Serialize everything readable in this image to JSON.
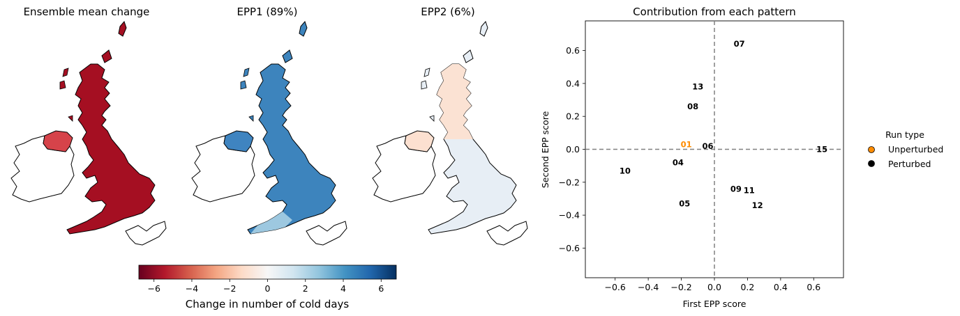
{
  "maps": [
    {
      "title": "Ensemble mean change",
      "fill": "#a50f22",
      "fill_light": "#c8303a",
      "ni_fill": "#d6434a",
      "ireland_fill": "#ffffff"
    },
    {
      "title": "EPP1 (89%)",
      "fill": "#3d84bd",
      "fill_light": "#9dc8e0",
      "ni_fill": "#3f84c0",
      "ireland_fill": "#ffffff"
    },
    {
      "title": "EPP2 (6%)",
      "fill": "#e7eef5",
      "fill_light": "#fbe2d3",
      "ni_fill": "#fce0d0",
      "ireland_fill": "#ffffff"
    }
  ],
  "colorbar": {
    "label": "Change in number of cold days",
    "ticks": [
      "−6",
      "−4",
      "−2",
      "0",
      "2",
      "4",
      "6"
    ],
    "tick_values": [
      -6,
      -4,
      -2,
      0,
      2,
      4,
      6
    ],
    "range": [
      -6.8,
      6.8
    ],
    "colors": [
      "#67001f",
      "#b2182b",
      "#d6604d",
      "#f4a582",
      "#fddbc7",
      "#f7f7f7",
      "#d1e5f0",
      "#92c5de",
      "#4393c3",
      "#2166ac",
      "#053061"
    ]
  },
  "chart_data": {
    "type": "scatter",
    "title": "Contribution from each pattern",
    "xlabel": "First EPP score",
    "ylabel": "Second EPP score",
    "xlim": [
      -0.78,
      0.78
    ],
    "ylim": [
      -0.78,
      0.78
    ],
    "xticks": [
      -0.6,
      -0.4,
      -0.2,
      0.0,
      0.2,
      0.4,
      0.6
    ],
    "xtick_labels": [
      "−0.6",
      "−0.4",
      "−0.2",
      "0.0",
      "0.2",
      "0.4",
      "0.6"
    ],
    "yticks": [
      -0.6,
      -0.4,
      -0.2,
      0.0,
      0.2,
      0.4,
      0.6
    ],
    "ytick_labels": [
      "−0.6",
      "−0.4",
      "−0.2",
      "0.0",
      "0.2",
      "0.4",
      "0.6"
    ],
    "reference_lines": {
      "x": 0,
      "y": 0,
      "style": "dashed",
      "color": "#808080"
    },
    "points": [
      {
        "label": "01",
        "x": -0.17,
        "y": 0.03,
        "type": "Unperturbed"
      },
      {
        "label": "04",
        "x": -0.22,
        "y": -0.08,
        "type": "Perturbed"
      },
      {
        "label": "05",
        "x": -0.18,
        "y": -0.33,
        "type": "Perturbed"
      },
      {
        "label": "06",
        "x": -0.04,
        "y": 0.02,
        "type": "Perturbed"
      },
      {
        "label": "07",
        "x": 0.15,
        "y": 0.64,
        "type": "Perturbed"
      },
      {
        "label": "08",
        "x": -0.13,
        "y": 0.26,
        "type": "Perturbed"
      },
      {
        "label": "09",
        "x": 0.13,
        "y": -0.24,
        "type": "Perturbed"
      },
      {
        "label": "10",
        "x": -0.54,
        "y": -0.13,
        "type": "Perturbed"
      },
      {
        "label": "11",
        "x": 0.21,
        "y": -0.25,
        "type": "Perturbed"
      },
      {
        "label": "12",
        "x": 0.26,
        "y": -0.34,
        "type": "Perturbed"
      },
      {
        "label": "13",
        "x": -0.1,
        "y": 0.38,
        "type": "Perturbed"
      },
      {
        "label": "15",
        "x": 0.65,
        "y": 0.0,
        "type": "Perturbed"
      }
    ],
    "legend": {
      "title": "Run type",
      "position": "right",
      "entries": [
        {
          "label": "Unperturbed",
          "color": "#ff8c00"
        },
        {
          "label": "Perturbed",
          "color": "#000000"
        }
      ]
    }
  }
}
